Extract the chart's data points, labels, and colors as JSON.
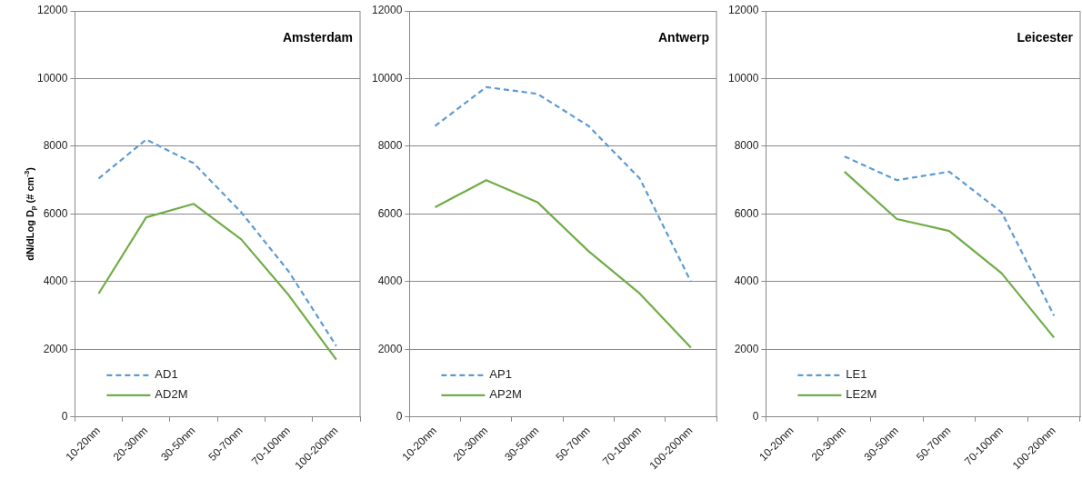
{
  "chart_data": [
    {
      "type": "line",
      "title": "Amsterdam",
      "ylabel": "dN/dLog D$_{p}$ (# cm$^{-3}$)",
      "categories": [
        "10-20nm",
        "20-30nm",
        "30-50nm",
        "50-70nm",
        "70-100nm",
        "100-200nm"
      ],
      "series": [
        {
          "name": "AD1",
          "color": "#5b9bd5",
          "line_style": "dashed",
          "values": [
            7050,
            8200,
            7500,
            6050,
            4300,
            2100
          ]
        },
        {
          "name": "AD2M",
          "color": "#70ad47",
          "line_style": "solid",
          "values": [
            3650,
            5900,
            6300,
            5250,
            3600,
            1700
          ]
        }
      ],
      "ylim": [
        0,
        12000
      ],
      "yticks": [
        0,
        2000,
        4000,
        6000,
        8000,
        10000,
        12000
      ],
      "grid": "y",
      "legend": "bottom left",
      "marker": "none"
    },
    {
      "type": "line",
      "title": "Antwerp",
      "categories": [
        "10-20nm",
        "20-30nm",
        "30-50nm",
        "50-70nm",
        "70-100nm",
        "100-200nm"
      ],
      "series": [
        {
          "name": "AP1",
          "color": "#5b9bd5",
          "line_style": "dashed",
          "values": [
            8600,
            9750,
            9550,
            8600,
            7050,
            4000
          ]
        },
        {
          "name": "AP2M",
          "color": "#70ad47",
          "line_style": "solid",
          "values": [
            6200,
            7000,
            6350,
            4900,
            3650,
            2050
          ]
        }
      ],
      "ylim": [
        0,
        12000
      ],
      "yticks": [
        0,
        2000,
        4000,
        6000,
        8000,
        10000,
        12000
      ],
      "grid": "y",
      "legend": "bottom left",
      "marker": "none"
    },
    {
      "type": "line",
      "title": "Leicester",
      "categories": [
        "10-20nm",
        "20-30nm",
        "30-50nm",
        "50-70nm",
        "70-100nm",
        "100-200nm"
      ],
      "series": [
        {
          "name": "LE1",
          "color": "#5b9bd5",
          "line_style": "dashed",
          "values": [
            null,
            7700,
            7000,
            7250,
            6050,
            3000
          ]
        },
        {
          "name": "LE2M",
          "color": "#70ad47",
          "line_style": "solid",
          "values": [
            null,
            7250,
            5850,
            5500,
            4250,
            2350
          ]
        }
      ],
      "ylim": [
        0,
        12000
      ],
      "yticks": [
        0,
        2000,
        4000,
        6000,
        8000,
        10000,
        12000
      ],
      "grid": "y",
      "legend": "bottom left",
      "marker": "none"
    }
  ]
}
